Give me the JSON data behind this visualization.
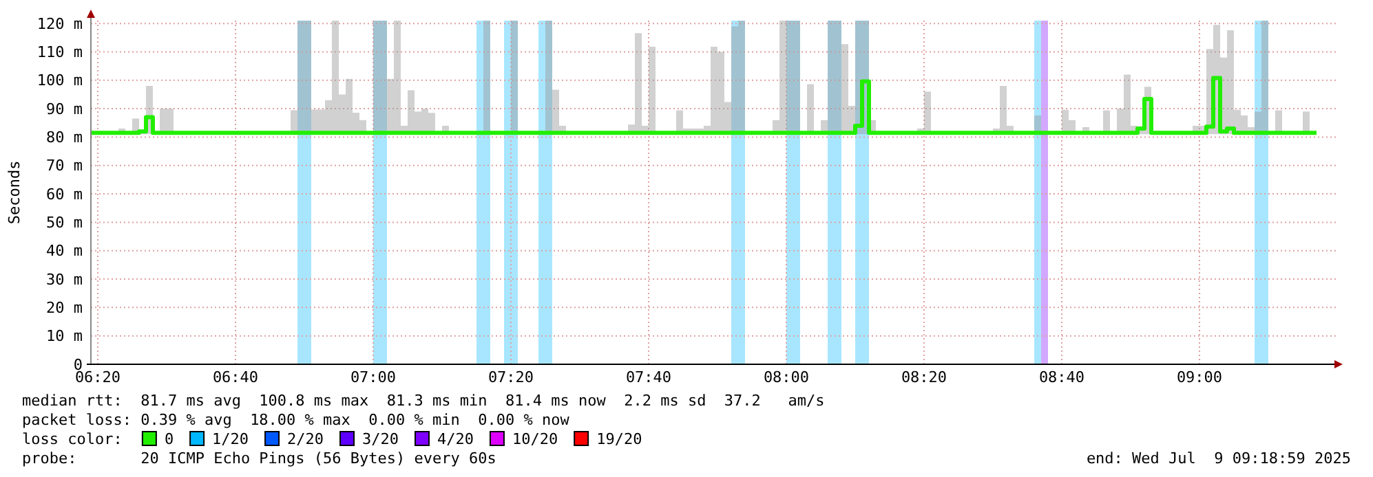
{
  "chart_data": {
    "type": "step",
    "ylabel": "Seconds",
    "xlim": [
      "2025-07-09T06:19",
      "2025-07-09T09:20"
    ],
    "ylim": [
      0,
      121
    ],
    "xticks": [
      {
        "value": "2025-07-09T06:20",
        "label": "06:20"
      },
      {
        "value": "2025-07-09T06:40",
        "label": "06:40"
      },
      {
        "value": "2025-07-09T07:00",
        "label": "07:00"
      },
      {
        "value": "2025-07-09T07:20",
        "label": "07:20"
      },
      {
        "value": "2025-07-09T07:40",
        "label": "07:40"
      },
      {
        "value": "2025-07-09T08:00",
        "label": "08:00"
      },
      {
        "value": "2025-07-09T08:20",
        "label": "08:20"
      },
      {
        "value": "2025-07-09T08:40",
        "label": "08:40"
      },
      {
        "value": "2025-07-09T09:00",
        "label": "09:00"
      }
    ],
    "yticks": [
      0,
      {
        "value": 10,
        "label": "10 m"
      },
      {
        "value": 20,
        "label": "20 m"
      },
      {
        "value": 30,
        "label": "30 m"
      },
      {
        "value": 40,
        "label": "40 m"
      },
      {
        "value": 50,
        "label": "50 m"
      },
      {
        "value": 60,
        "label": "60 m"
      },
      {
        "value": 70,
        "label": "70 m"
      },
      {
        "value": 80,
        "label": "80 m"
      },
      {
        "value": 90,
        "label": "90 m"
      },
      {
        "value": 100,
        "label": "100 m"
      },
      {
        "value": 110,
        "label": "110 m"
      },
      {
        "value": 120,
        "label": "120 m"
      }
    ],
    "grid": true,
    "legend": "bottom",
    "legend_title": "loss color:",
    "bands": [
      {
        "axis": "x",
        "from": "2025-07-09T06:49",
        "to": "2025-07-09T06:51",
        "color": "#a8e6ff"
      },
      {
        "axis": "x",
        "from": "2025-07-09T07:00",
        "to": "2025-07-09T07:02",
        "color": "#a8e6ff"
      },
      {
        "axis": "x",
        "from": "2025-07-09T07:15",
        "to": "2025-07-09T07:17",
        "color": "#a8e6ff"
      },
      {
        "axis": "x",
        "from": "2025-07-09T07:19",
        "to": "2025-07-09T07:21",
        "color": "#a8e6ff"
      },
      {
        "axis": "x",
        "from": "2025-07-09T07:24",
        "to": "2025-07-09T07:26",
        "color": "#a8e6ff"
      },
      {
        "axis": "x",
        "from": "2025-07-09T07:52",
        "to": "2025-07-09T07:54",
        "color": "#a8e6ff"
      },
      {
        "axis": "x",
        "from": "2025-07-09T08:00",
        "to": "2025-07-09T08:02",
        "color": "#a8e6ff"
      },
      {
        "axis": "x",
        "from": "2025-07-09T08:06",
        "to": "2025-07-09T08:08",
        "color": "#a8e6ff"
      },
      {
        "axis": "x",
        "from": "2025-07-09T08:10",
        "to": "2025-07-09T08:12",
        "color": "#a8e6ff"
      },
      {
        "axis": "x",
        "from": "2025-07-09T08:36",
        "to": "2025-07-09T08:37",
        "color": "#a8e6ff"
      },
      {
        "axis": "x",
        "from": "2025-07-09T08:37",
        "to": "2025-07-09T08:38",
        "color": "#d2a8ff"
      },
      {
        "axis": "x",
        "from": "2025-07-09T09:08",
        "to": "2025-07-09T09:10",
        "color": "#a8e6ff"
      }
    ],
    "series": [
      {
        "name": "0",
        "color": "#22ee00",
        "x": [
          "2025-07-09T06:19",
          "2025-07-09T06:23",
          "2025-07-09T06:24",
          "2025-07-09T06:25",
          "2025-07-09T06:26",
          "2025-07-09T06:27",
          "2025-07-09T06:28",
          "2025-07-09T06:29",
          "2025-07-09T06:31",
          "2025-07-09T06:48",
          "2025-07-09T06:49",
          "2025-07-09T06:51",
          "2025-07-09T06:53",
          "2025-07-09T06:54",
          "2025-07-09T06:55",
          "2025-07-09T06:56",
          "2025-07-09T06:57",
          "2025-07-09T06:58",
          "2025-07-09T06:59",
          "2025-07-09T07:00",
          "2025-07-09T07:02",
          "2025-07-09T07:03",
          "2025-07-09T07:04",
          "2025-07-09T07:05",
          "2025-07-09T07:06",
          "2025-07-09T07:07",
          "2025-07-09T07:08",
          "2025-07-09T07:09",
          "2025-07-09T07:10",
          "2025-07-09T07:11",
          "2025-07-09T07:16",
          "2025-07-09T07:17",
          "2025-07-09T07:20",
          "2025-07-09T07:21",
          "2025-07-09T07:25",
          "2025-07-09T07:26",
          "2025-07-09T07:27",
          "2025-07-09T07:28",
          "2025-07-09T07:37",
          "2025-07-09T07:38",
          "2025-07-09T07:39",
          "2025-07-09T07:40",
          "2025-07-09T07:41",
          "2025-07-09T07:44",
          "2025-07-09T07:45",
          "2025-07-09T07:48",
          "2025-07-09T07:49",
          "2025-07-09T07:50",
          "2025-07-09T07:51",
          "2025-07-09T07:52",
          "2025-07-09T07:53",
          "2025-07-09T07:54",
          "2025-07-09T07:58",
          "2025-07-09T07:59",
          "2025-07-09T08:02",
          "2025-07-09T08:03",
          "2025-07-09T08:04",
          "2025-07-09T08:05",
          "2025-07-09T08:06",
          "2025-07-09T08:08",
          "2025-07-09T08:09",
          "2025-07-09T08:10",
          "2025-07-09T08:11",
          "2025-07-09T08:12",
          "2025-07-09T08:13",
          "2025-07-09T08:19",
          "2025-07-09T08:20",
          "2025-07-09T08:21",
          "2025-07-09T08:30",
          "2025-07-09T08:31",
          "2025-07-09T08:32",
          "2025-07-09T08:33",
          "2025-07-09T08:36",
          "2025-07-09T08:37",
          "2025-07-09T08:40",
          "2025-07-09T08:41",
          "2025-07-09T08:42",
          "2025-07-09T08:43",
          "2025-07-09T08:44",
          "2025-07-09T08:46",
          "2025-07-09T08:47",
          "2025-07-09T08:48",
          "2025-07-09T08:49",
          "2025-07-09T08:50",
          "2025-07-09T08:51",
          "2025-07-09T08:52",
          "2025-07-09T08:53",
          "2025-07-09T08:59",
          "2025-07-09T09:01",
          "2025-07-09T09:02",
          "2025-07-09T09:03",
          "2025-07-09T09:04",
          "2025-07-09T09:05",
          "2025-07-09T09:06",
          "2025-07-09T09:07",
          "2025-07-09T09:08",
          "2025-07-09T09:09",
          "2025-07-09T09:10",
          "2025-07-09T09:11",
          "2025-07-09T09:12",
          "2025-07-09T09:15",
          "2025-07-09T09:16",
          "2025-07-09T09:17"
        ],
        "values": [
          81.5,
          81.5,
          81.5,
          81.5,
          82,
          87,
          81.5,
          81.5,
          81.5,
          81.5,
          81.5,
          81.5,
          81.5,
          81.5,
          81.5,
          81.5,
          81.5,
          81.5,
          81.5,
          81.5,
          81.5,
          81.5,
          81.5,
          81.5,
          81.5,
          81.5,
          81.5,
          81.5,
          81.5,
          81.5,
          81.5,
          81.5,
          81.5,
          81.5,
          81.5,
          81.5,
          81.5,
          81.5,
          81.5,
          81.5,
          81.5,
          81.5,
          81.5,
          81.5,
          81.5,
          81.5,
          81.5,
          81.5,
          81.5,
          81.5,
          81.5,
          81.5,
          81.5,
          81.5,
          81.5,
          81.5,
          81.5,
          81.5,
          81.5,
          81.5,
          81.5,
          84,
          99.6,
          81.5,
          81.5,
          81.5,
          81.5,
          81.5,
          81.5,
          81.5,
          81.5,
          81.5,
          81.5,
          81.5,
          81.5,
          81.5,
          81.5,
          81.5,
          81.5,
          81.5,
          81.5,
          81.5,
          81.5,
          81.5,
          83,
          93.4,
          81.5,
          81.5,
          83.7,
          100.8,
          82,
          83,
          81.5,
          81.5,
          81.5,
          81.5,
          81.5,
          81.5,
          81.5,
          81.5,
          81.5,
          81.5,
          81.5
        ],
        "lower": [
          81,
          81,
          81,
          81,
          81,
          81,
          81,
          81,
          81,
          81,
          81,
          81,
          81,
          81,
          81,
          81,
          81,
          81,
          81,
          81,
          81,
          81,
          81,
          81,
          81,
          81,
          81,
          81,
          81,
          81,
          81,
          81,
          81,
          81,
          81,
          81,
          81,
          81,
          81,
          81,
          81,
          81,
          81,
          81,
          81,
          81,
          81,
          81,
          81,
          81,
          81,
          81,
          81,
          81,
          81,
          81,
          81,
          81,
          81,
          81,
          81,
          81,
          81,
          81,
          81,
          81,
          81,
          81,
          81,
          81,
          81,
          81,
          81,
          81,
          81,
          81,
          81,
          81,
          81,
          81,
          81,
          81,
          81,
          81,
          81,
          81,
          81,
          81,
          81,
          81,
          81,
          81,
          81,
          81,
          81,
          81,
          81,
          81,
          81,
          81,
          81,
          81,
          81
        ],
        "upper": [
          82,
          83,
          82,
          86.5,
          82,
          98,
          82,
          90,
          82,
          89.5,
          121,
          89.7,
          93,
          121,
          95,
          100.5,
          88.6,
          86,
          82,
          121,
          100.5,
          121,
          84,
          96.5,
          89,
          90,
          88.5,
          82,
          84,
          82,
          121,
          82,
          121,
          82,
          121,
          96.7,
          84,
          82,
          84.4,
          116.6,
          84,
          111.8,
          82,
          89.4,
          83,
          84,
          111.8,
          110,
          92.3,
          119,
          121,
          82,
          86,
          121,
          82,
          98.6,
          82,
          86,
          121,
          112.7,
          91,
          121,
          121,
          86,
          82,
          83,
          96,
          82,
          83,
          98,
          84,
          82,
          87.6,
          82,
          89.6,
          86,
          82,
          83.5,
          82,
          89.4,
          82,
          90,
          102,
          84,
          83.5,
          97.7,
          82,
          84,
          111,
          119.5,
          108,
          117.6,
          89.6,
          87.6,
          83.5,
          89,
          121,
          82,
          89.4,
          82,
          89,
          82,
          82
        ]
      },
      {
        "name": "1/20",
        "color": "#00b8ff"
      },
      {
        "name": "2/20",
        "color": "#0059ff"
      },
      {
        "name": "3/20",
        "color": "#5e00ff"
      },
      {
        "name": "4/20",
        "color": "#7e00ff"
      },
      {
        "name": "10/20",
        "color": "#dd00ff"
      },
      {
        "name": "19/20",
        "color": "#ff0000"
      }
    ],
    "annotations": [
      "median rtt:  81.7 ms avg  100.8 ms max  81.3 ms min  81.4 ms now  2.2 ms sd  37.2   am/s",
      "packet loss: 0.39 % avg  18.00 % max  0.00 % min  0.00 % now",
      "probe:       20 ICMP Echo Pings (56 Bytes) every 60s",
      "end: Wed Jul  9 09:18:59 2025"
    ]
  }
}
